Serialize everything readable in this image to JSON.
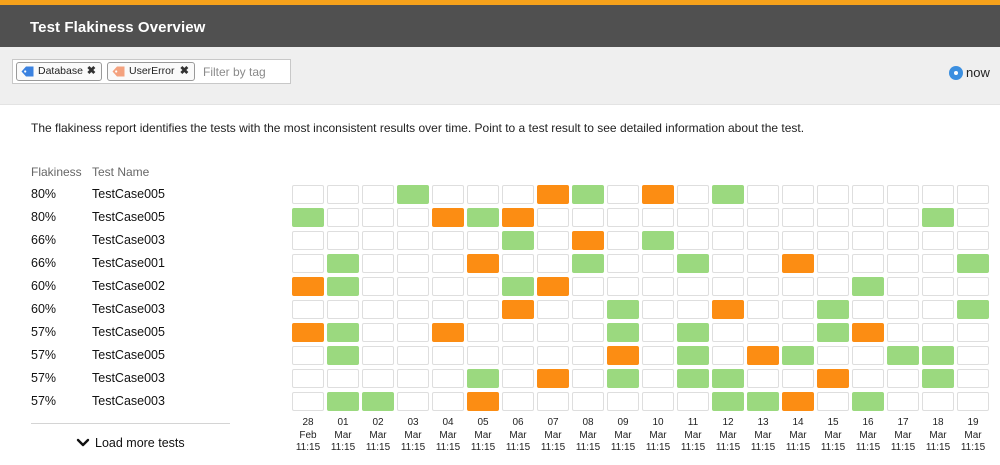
{
  "header": {
    "title": "Test Flakiness Overview",
    "accent_color": "#f5a11b"
  },
  "filter": {
    "tags": [
      {
        "label": "Database",
        "icon": "tag-icon",
        "color": "#3b82e0"
      },
      {
        "label": "UserError",
        "icon": "tag-icon",
        "color": "#f4a27f"
      }
    ],
    "remove_glyph": "✖",
    "placeholder": "Filter by tag"
  },
  "time_selector": {
    "label": "now",
    "selected": true
  },
  "description": "The flakiness report identifies the tests with the most inconsistent results over time. Point to a test result to see detailed information about the test.",
  "table": {
    "columns": {
      "flakiness": "Flakiness",
      "test_name": "Test Name"
    },
    "dates": [
      {
        "day": "28",
        "month": "Feb",
        "time": "11:15"
      },
      {
        "day": "01",
        "month": "Mar",
        "time": "11:15"
      },
      {
        "day": "02",
        "month": "Mar",
        "time": "11:15"
      },
      {
        "day": "03",
        "month": "Mar",
        "time": "11:15"
      },
      {
        "day": "04",
        "month": "Mar",
        "time": "11:15"
      },
      {
        "day": "05",
        "month": "Mar",
        "time": "11:15"
      },
      {
        "day": "06",
        "month": "Mar",
        "time": "11:15"
      },
      {
        "day": "07",
        "month": "Mar",
        "time": "11:15"
      },
      {
        "day": "08",
        "month": "Mar",
        "time": "11:15"
      },
      {
        "day": "09",
        "month": "Mar",
        "time": "11:15"
      },
      {
        "day": "10",
        "month": "Mar",
        "time": "11:15"
      },
      {
        "day": "11",
        "month": "Mar",
        "time": "11:15"
      },
      {
        "day": "12",
        "month": "Mar",
        "time": "11:15"
      },
      {
        "day": "13",
        "month": "Mar",
        "time": "11:15"
      },
      {
        "day": "14",
        "month": "Mar",
        "time": "11:15"
      },
      {
        "day": "15",
        "month": "Mar",
        "time": "11:15"
      },
      {
        "day": "16",
        "month": "Mar",
        "time": "11:15"
      },
      {
        "day": "17",
        "month": "Mar",
        "time": "11:15"
      },
      {
        "day": "18",
        "month": "Mar",
        "time": "11:15"
      },
      {
        "day": "19",
        "month": "Mar",
        "time": "11:15"
      }
    ],
    "status_colors": {
      "pass": "#9bd97f",
      "fail": "#fc8d13",
      "none": "#ffffff"
    },
    "rows": [
      {
        "flakiness": "80%",
        "name": "TestCase005",
        "results": "___P___FP_F_P_______"
      },
      {
        "flakiness": "80%",
        "name": "TestCase005",
        "results": "P___FPF___________P_"
      },
      {
        "flakiness": "66%",
        "name": "TestCase003",
        "results": "______P_F_P_________"
      },
      {
        "flakiness": "66%",
        "name": "TestCase001",
        "results": "_P___F__P__P__F____P"
      },
      {
        "flakiness": "60%",
        "name": "TestCase002",
        "results": "FP____PF________P___"
      },
      {
        "flakiness": "60%",
        "name": "TestCase003",
        "results": "______F__P__F__P___P"
      },
      {
        "flakiness": "57%",
        "name": "TestCase005",
        "results": "FP__F____P_P___PF___"
      },
      {
        "flakiness": "57%",
        "name": "TestCase005",
        "results": "_P_______F_P_FP__PP_"
      },
      {
        "flakiness": "57%",
        "name": "TestCase003",
        "results": "_____P_F_P_PP__F__P_"
      },
      {
        "flakiness": "57%",
        "name": "TestCase003",
        "results": "_PP__F______PPF_P___"
      }
    ]
  },
  "load_more": {
    "label": "Load more tests",
    "icon": "chevron-down-icon"
  }
}
